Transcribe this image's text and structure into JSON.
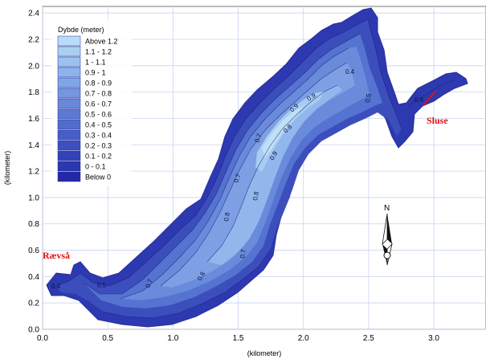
{
  "legend": {
    "title": "Dybde (meter)",
    "items": [
      {
        "label": "Above 1.2",
        "color": "#b8ddf6"
      },
      {
        "label": "1.1 - 1.2",
        "color": "#a9cff2"
      },
      {
        "label": "1 - 1.1",
        "color": "#9bc2ee"
      },
      {
        "label": "0.9 - 1",
        "color": "#8db3e9"
      },
      {
        "label": "0.8 - 0.9",
        "color": "#80a5e4"
      },
      {
        "label": "0.7 - 0.8",
        "color": "#7497df"
      },
      {
        "label": "0.6 - 0.7",
        "color": "#6888da"
      },
      {
        "label": "0.5 - 0.6",
        "color": "#5c7ad4"
      },
      {
        "label": "0.4 - 0.5",
        "color": "#516ccd"
      },
      {
        "label": "0.3 - 0.4",
        "color": "#465ec6"
      },
      {
        "label": "0.2 - 0.3",
        "color": "#3c50bf"
      },
      {
        "label": "0.1 - 0.2",
        "color": "#3343b7"
      },
      {
        "label": "0 - 0.1",
        "color": "#2b37ae"
      },
      {
        "label": "Below 0",
        "color": "#2329a4"
      }
    ]
  },
  "axes": {
    "xlabel": "(kilometer)",
    "ylabel": "(kilometer)",
    "xticks": [
      "0.0",
      "0.5",
      "1.0",
      "1.5",
      "2.0",
      "2.5",
      "3.0"
    ],
    "yticks": [
      "0.0",
      "0.2",
      "0.4",
      "0.6",
      "0.8",
      "1.0",
      "1.2",
      "1.4",
      "1.6",
      "1.8",
      "2.0",
      "2.2",
      "2.4"
    ],
    "xlim": [
      0,
      3.4
    ],
    "ylim": [
      0,
      2.45
    ]
  },
  "places": {
    "west": "Rævså",
    "east": "Sluse",
    "color": "#e01010"
  },
  "compass": {
    "label": "N"
  },
  "contour_labels": [
    "0.4",
    "0.5",
    "0.7",
    "0.8",
    "0.7",
    "0.8",
    "0.7",
    "0.8",
    "0.9",
    "0.8",
    "0.9",
    "0.7",
    "0.4",
    "0.5",
    "0.9",
    "0.6"
  ],
  "colors": {
    "outline": "#3038b0",
    "grid": "#c8d4f0"
  }
}
